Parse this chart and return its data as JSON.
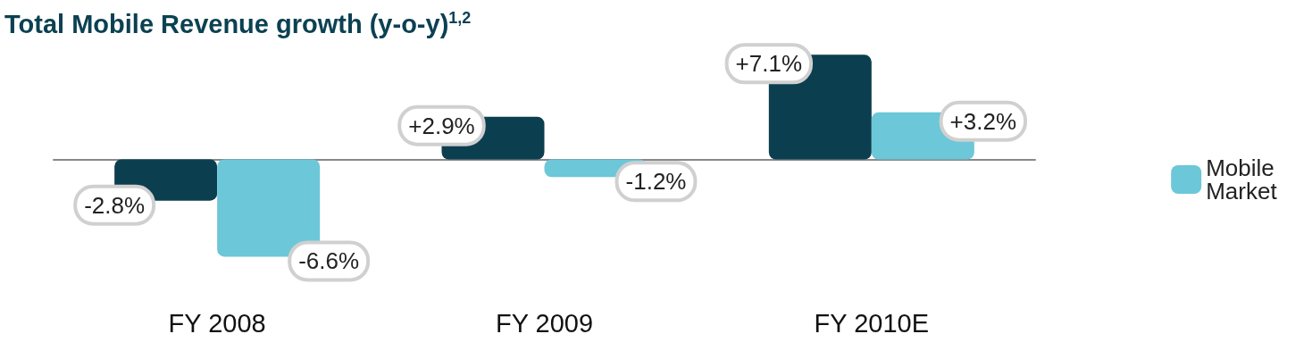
{
  "chart_data": {
    "type": "bar",
    "title": "Total Mobile Revenue growth (y-o-y)$^{1,2}$",
    "categories": [
      "FY 2008",
      "FY 2009",
      "FY 2010E"
    ],
    "series": [
      {
        "color": "#0b3f50",
        "values": [
          -2.8,
          2.9,
          7.1
        ],
        "value_labels": [
          "-2.8%",
          "+2.9%",
          "+7.1%"
        ]
      },
      {
        "name": "Mobile Market",
        "color": "#6cc7d8",
        "values": [
          -6.6,
          -1.2,
          3.2
        ],
        "value_labels": [
          "-6.6%",
          "-1.2%",
          "+3.2%"
        ]
      }
    ],
    "legend": "right"
  }
}
